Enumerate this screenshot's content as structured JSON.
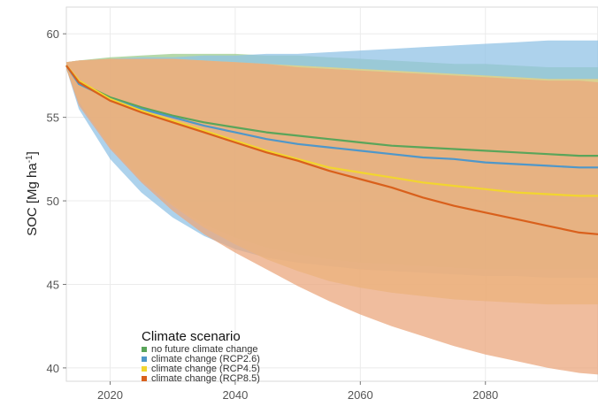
{
  "chart_data": {
    "type": "area",
    "xlabel": "",
    "ylabel": "SOC [Mg ha",
    "ylabel_sup": "-1",
    "ylabel_close": "]",
    "xlim": [
      2013,
      2098
    ],
    "ylim": [
      39.2,
      61.6
    ],
    "x_ticks": [
      2020,
      2040,
      2060,
      2080
    ],
    "y_ticks": [
      40,
      45,
      50,
      55,
      60
    ],
    "grid": true,
    "legend": {
      "title": "Climate scenario",
      "placement": "bottom-left"
    },
    "x": [
      2013,
      2015,
      2020,
      2025,
      2030,
      2035,
      2040,
      2045,
      2050,
      2055,
      2060,
      2065,
      2070,
      2075,
      2080,
      2085,
      2090,
      2095,
      2098
    ],
    "series": [
      {
        "name": "no future climate change",
        "color": "#5aa55a",
        "band_color": "#9ccc8c",
        "mean": [
          58.1,
          57.1,
          56.2,
          55.6,
          55.1,
          54.7,
          54.4,
          54.1,
          53.9,
          53.7,
          53.5,
          53.3,
          53.2,
          53.1,
          53.0,
          52.9,
          52.8,
          52.7,
          52.7
        ],
        "upper": [
          58.3,
          58.4,
          58.6,
          58.7,
          58.8,
          58.8,
          58.8,
          58.7,
          58.7,
          58.6,
          58.5,
          58.4,
          58.3,
          58.2,
          58.2,
          58.1,
          58.0,
          58.0,
          58.0
        ],
        "lower": [
          57.9,
          55.8,
          53.3,
          51.3,
          49.8,
          48.6,
          47.8,
          47.2,
          46.8,
          46.5,
          46.3,
          46.2,
          46.1,
          46.0,
          45.9,
          45.9,
          45.9,
          45.9,
          45.9
        ]
      },
      {
        "name": "climate change (RCP2.6)",
        "color": "#4f97c9",
        "band_color": "#92c3e6",
        "mean": [
          58.1,
          57.0,
          56.1,
          55.5,
          55.0,
          54.5,
          54.1,
          53.7,
          53.4,
          53.2,
          53.0,
          52.8,
          52.6,
          52.5,
          52.3,
          52.2,
          52.1,
          52.0,
          52.0
        ],
        "upper": [
          58.3,
          58.4,
          58.5,
          58.6,
          58.6,
          58.7,
          58.7,
          58.8,
          58.8,
          58.9,
          59.0,
          59.1,
          59.2,
          59.3,
          59.4,
          59.5,
          59.6,
          59.6,
          59.6
        ],
        "lower": [
          57.9,
          55.5,
          52.5,
          50.5,
          49.0,
          47.9,
          47.1,
          46.6,
          46.3,
          46.1,
          45.9,
          45.8,
          45.7,
          45.6,
          45.5,
          45.5,
          45.4,
          45.4,
          45.4
        ]
      },
      {
        "name": "climate change (RCP4.5)",
        "color": "#f2d52f",
        "band_color": "#eed37a",
        "mean": [
          58.1,
          57.2,
          56.1,
          55.4,
          54.8,
          54.2,
          53.6,
          53.0,
          52.5,
          52.0,
          51.7,
          51.4,
          51.1,
          50.9,
          50.7,
          50.5,
          50.4,
          50.3,
          50.3
        ],
        "upper": [
          58.3,
          58.4,
          58.5,
          58.5,
          58.5,
          58.4,
          58.3,
          58.2,
          58.1,
          58.0,
          57.9,
          57.8,
          57.7,
          57.6,
          57.5,
          57.4,
          57.3,
          57.3,
          57.3
        ],
        "lower": [
          57.9,
          55.9,
          53.2,
          51.2,
          49.7,
          48.4,
          47.4,
          46.5,
          45.8,
          45.2,
          44.8,
          44.5,
          44.3,
          44.1,
          44.0,
          43.9,
          43.8,
          43.8,
          43.8
        ]
      },
      {
        "name": "climate change (RCP8.5)",
        "color": "#d9601c",
        "band_color": "#eba77e",
        "mean": [
          58.1,
          57.1,
          56.0,
          55.3,
          54.7,
          54.1,
          53.5,
          52.9,
          52.4,
          51.8,
          51.3,
          50.8,
          50.2,
          49.7,
          49.3,
          48.9,
          48.5,
          48.1,
          48.0
        ],
        "upper": [
          58.3,
          58.4,
          58.5,
          58.5,
          58.5,
          58.4,
          58.3,
          58.2,
          58.0,
          57.9,
          57.8,
          57.7,
          57.6,
          57.5,
          57.4,
          57.3,
          57.2,
          57.2,
          57.1
        ],
        "lower": [
          57.9,
          55.7,
          53.1,
          51.1,
          49.4,
          48.0,
          46.9,
          45.9,
          44.9,
          44.0,
          43.2,
          42.5,
          41.9,
          41.3,
          40.8,
          40.4,
          40.0,
          39.7,
          39.6
        ]
      }
    ]
  }
}
